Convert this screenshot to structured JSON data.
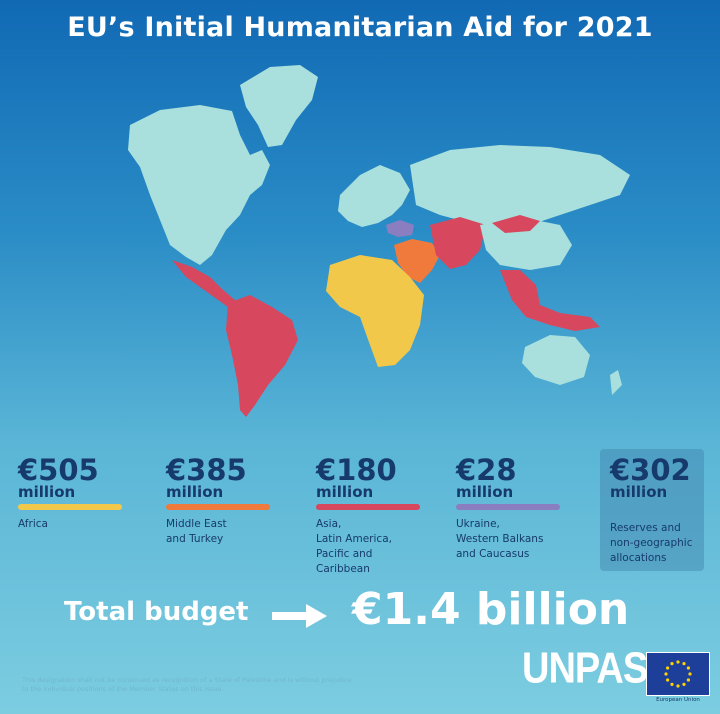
{
  "title": "EU’s Initial Humanitarian Aid for 2021",
  "colors": {
    "africa": "#f2c84b",
    "middle_east": "#ef7a3c",
    "asia_latam": "#d7475d",
    "ukraine": "#8a7ec0",
    "land": "#a9e0dd",
    "text_dark": "#173a6c"
  },
  "regions": [
    {
      "amount": "€505",
      "unit": "million",
      "label": "Africa"
    },
    {
      "amount": "€385",
      "unit": "million",
      "label": "Middle East\nand Turkey"
    },
    {
      "amount": "€180",
      "unit": "million",
      "label": "Asia,\nLatin America,\nPacific and\nCaribbean"
    },
    {
      "amount": "€28",
      "unit": "million",
      "label": "Ukraine,\nWestern Balkans\nand Caucasus"
    },
    {
      "amount": "€302",
      "unit": "million",
      "label": "Reserves and\nnon-geographic\nallocations"
    }
  ],
  "total": {
    "label": "Total budget",
    "value": "€1.4 billion"
  },
  "organization": "UNPAS",
  "disclaimer": "This designation shall not be construed as recognition of a State of Palestine and is without prejudice to the individual positions of the Member States on this issue.",
  "eu_caption": "European Union"
}
